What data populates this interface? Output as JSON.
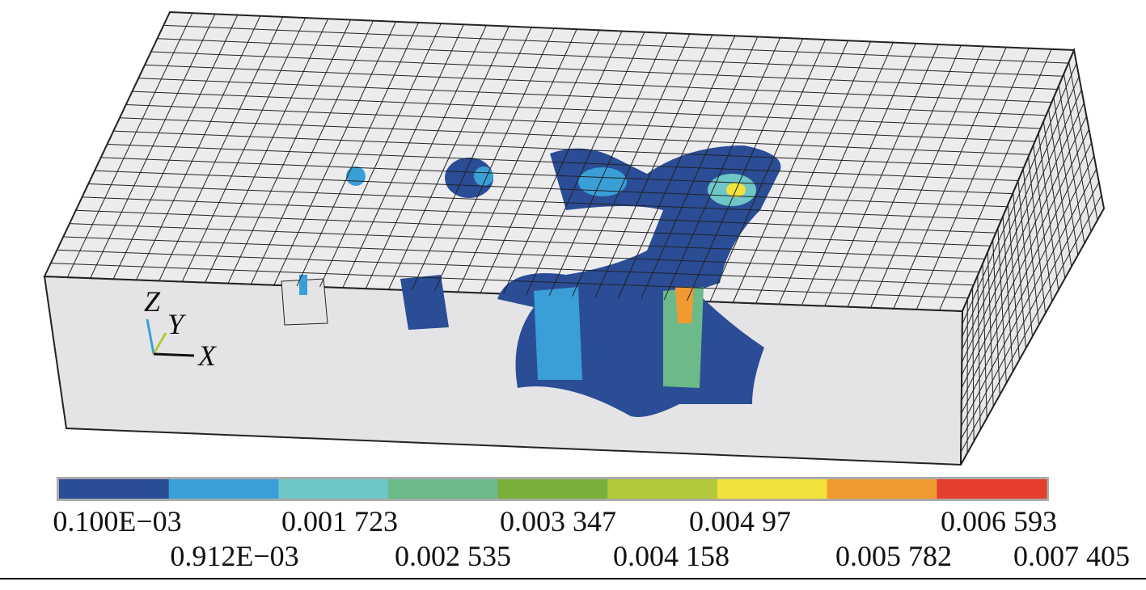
{
  "axes": {
    "z": "Z",
    "y": "Y",
    "x": "X"
  },
  "legend": {
    "colors": [
      "#2a4d96",
      "#3a9fd6",
      "#6ec6c6",
      "#6cba8a",
      "#7aaf3c",
      "#b2c93a",
      "#f3e23c",
      "#f29a32",
      "#e4402d"
    ],
    "labels_top": [
      "0.100E−03",
      "0.001 723",
      "0.003 347",
      "0.004 97",
      "0.006 593"
    ],
    "labels_bottom": [
      "0.912E−03",
      "0.002 535",
      "0.004 158",
      "0.005 782",
      "0.007 405"
    ]
  }
}
